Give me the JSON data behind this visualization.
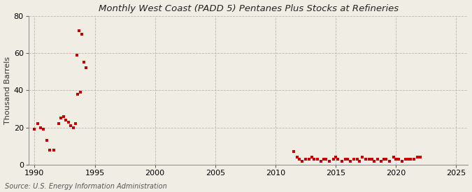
{
  "title": "Monthly West Coast (PADD 5) Pentanes Plus Stocks at Refineries",
  "ylabel": "Thousand Barrels",
  "source": "Source: U.S. Energy Information Administration",
  "fig_background_color": "#f0ede4",
  "plot_background_color": "#f0ede4",
  "marker_color": "#cc0000",
  "xlim": [
    1989.5,
    2026
  ],
  "ylim": [
    0,
    80
  ],
  "yticks": [
    0,
    20,
    40,
    60,
    80
  ],
  "xticks": [
    1990,
    1995,
    2000,
    2005,
    2010,
    2015,
    2020,
    2025
  ],
  "early_data": [
    [
      1990.0,
      19
    ],
    [
      1990.25,
      22
    ],
    [
      1990.5,
      20
    ],
    [
      1990.75,
      19
    ],
    [
      1991.0,
      13
    ],
    [
      1991.25,
      8
    ],
    [
      1991.6,
      8
    ],
    [
      1992.0,
      22
    ],
    [
      1992.2,
      25
    ],
    [
      1992.4,
      26
    ],
    [
      1992.6,
      24
    ],
    [
      1992.8,
      23
    ],
    [
      1993.0,
      21
    ],
    [
      1993.2,
      20
    ],
    [
      1993.4,
      22
    ],
    [
      1993.6,
      38
    ],
    [
      1993.8,
      39
    ],
    [
      1993.5,
      59
    ],
    [
      1993.7,
      72
    ],
    [
      1993.9,
      70
    ],
    [
      1994.1,
      55
    ],
    [
      1994.3,
      52
    ]
  ],
  "late_data_x": [
    2011.5,
    2011.8,
    2012.0,
    2012.2,
    2012.5,
    2012.8,
    2013.0,
    2013.2,
    2013.5,
    2013.8,
    2014.0,
    2014.2,
    2014.5,
    2014.8,
    2015.0,
    2015.2,
    2015.5,
    2015.8,
    2016.0,
    2016.2,
    2016.5,
    2016.8,
    2017.0,
    2017.2,
    2017.5,
    2017.8,
    2018.0,
    2018.2,
    2018.5,
    2018.8,
    2019.0,
    2019.2,
    2019.5,
    2019.8,
    2020.0,
    2020.2,
    2020.5,
    2020.8,
    2021.0,
    2021.2,
    2021.5,
    2021.8,
    2022.0
  ],
  "late_data_y": [
    7,
    4,
    3,
    2,
    3,
    3,
    4,
    3,
    3,
    2,
    3,
    3,
    2,
    3,
    4,
    3,
    2,
    3,
    3,
    2,
    3,
    3,
    2,
    4,
    3,
    3,
    3,
    2,
    3,
    2,
    3,
    3,
    2,
    4,
    3,
    3,
    2,
    3,
    3,
    3,
    3,
    4,
    4
  ]
}
